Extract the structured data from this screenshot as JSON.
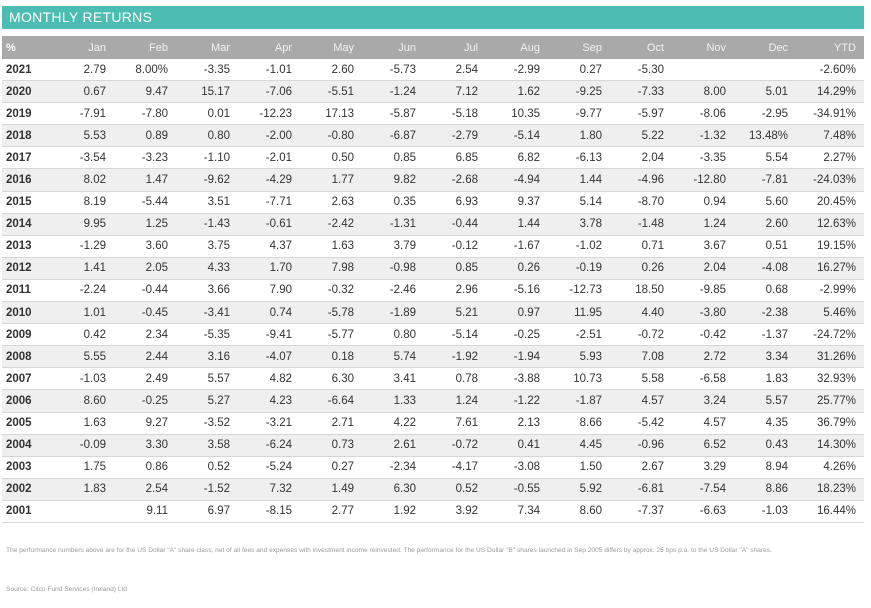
{
  "title": "MONTHLY RETURNS",
  "headers": [
    "%",
    "Jan",
    "Feb",
    "Mar",
    "Apr",
    "May",
    "Jun",
    "Jul",
    "Aug",
    "Sep",
    "Oct",
    "Nov",
    "Dec",
    "YTD"
  ],
  "rows": [
    [
      "2021",
      "2.79",
      "8.00%",
      "-3.35",
      "-1.01",
      "2.60",
      "-5.73",
      "2.54",
      "-2.99",
      "0.27",
      "-5.30",
      "",
      "",
      "-2.60%"
    ],
    [
      "2020",
      "0.67",
      "9.47",
      "15.17",
      "-7.06",
      "-5.51",
      "-1.24",
      "7.12",
      "1.62",
      "-9.25",
      "-7.33",
      "8.00",
      "5.01",
      "14.29%"
    ],
    [
      "2019",
      "-7.91",
      "-7.80",
      "0.01",
      "-12.23",
      "17.13",
      "-5.87",
      "-5.18",
      "10.35",
      "-9.77",
      "-5.97",
      "-8.06",
      "-2.95",
      "-34.91%"
    ],
    [
      "2018",
      "5.53",
      "0.89",
      "0.80",
      "-2.00",
      "-0.80",
      "-6.87",
      "-2.79",
      "-5.14",
      "1.80",
      "5.22",
      "-1.32",
      "13.48%",
      "7.48%"
    ],
    [
      "2017",
      "-3.54",
      "-3.23",
      "-1.10",
      "-2.01",
      "0.50",
      "0.85",
      "6.85",
      "6.82",
      "-6.13",
      "2.04",
      "-3.35",
      "5.54",
      "2.27%"
    ],
    [
      "2016",
      "8.02",
      "1.47",
      "-9.62",
      "-4.29",
      "1.77",
      "9.82",
      "-2.68",
      "-4.94",
      "1.44",
      "-4.96",
      "-12.80",
      "-7.81",
      "-24.03%"
    ],
    [
      "2015",
      "8.19",
      "-5.44",
      "3.51",
      "-7.71",
      "2.63",
      "0.35",
      "6.93",
      "9.37",
      "5.14",
      "-8.70",
      "0.94",
      "5.60",
      "20.45%"
    ],
    [
      "2014",
      "9.95",
      "1.25",
      "-1.43",
      "-0.61",
      "-2.42",
      "-1.31",
      "-0.44",
      "1.44",
      "3.78",
      "-1.48",
      "1.24",
      "2.60",
      "12.63%"
    ],
    [
      "2013",
      "-1.29",
      "3.60",
      "3.75",
      "4.37",
      "1.63",
      "3.79",
      "-0.12",
      "-1.67",
      "-1.02",
      "0.71",
      "3.67",
      "0.51",
      "19.15%"
    ],
    [
      "2012",
      "1.41",
      "2.05",
      "4.33",
      "1.70",
      "7.98",
      "-0.98",
      "0.85",
      "0.26",
      "-0.19",
      "0.26",
      "2.04",
      "-4.08",
      "16.27%"
    ],
    [
      "2011",
      "-2.24",
      "-0.44",
      "3.66",
      "7.90",
      "-0.32",
      "-2.46",
      "2.96",
      "-5.16",
      "-12.73",
      "18.50",
      "-9.85",
      "0.68",
      "-2.99%"
    ],
    [
      "2010",
      "1.01",
      "-0.45",
      "-3.41",
      "0.74",
      "-5.78",
      "-1.89",
      "5.21",
      "0.97",
      "11.95",
      "4.40",
      "-3.80",
      "-2.38",
      "5.46%"
    ],
    [
      "2009",
      "0.42",
      "2.34",
      "-5.35",
      "-9.41",
      "-5.77",
      "0.80",
      "-5.14",
      "-0.25",
      "-2.51",
      "-0.72",
      "-0.42",
      "-1.37",
      "-24.72%"
    ],
    [
      "2008",
      "5.55",
      "2.44",
      "3.16",
      "-4.07",
      "0.18",
      "5.74",
      "-1.92",
      "-1.94",
      "5.93",
      "7.08",
      "2.72",
      "3.34",
      "31.26%"
    ],
    [
      "2007",
      "-1.03",
      "2.49",
      "5.57",
      "4.82",
      "6.30",
      "3.41",
      "0.78",
      "-3.88",
      "10.73",
      "5.58",
      "-6.58",
      "1.83",
      "32.93%"
    ],
    [
      "2006",
      "8.60",
      "-0.25",
      "5.27",
      "4.23",
      "-6.64",
      "1.33",
      "1.24",
      "-1.22",
      "-1.87",
      "4.57",
      "3.24",
      "5.57",
      "25.77%"
    ],
    [
      "2005",
      "1.63",
      "9.27",
      "-3.52",
      "-3.21",
      "2.71",
      "4.22",
      "7.61",
      "2.13",
      "8.66",
      "-5.42",
      "4.57",
      "4.35",
      "36.79%"
    ],
    [
      "2004",
      "-0.09",
      "3.30",
      "3.58",
      "-6.24",
      "0.73",
      "2.61",
      "-0.72",
      "0.41",
      "4.45",
      "-0.96",
      "6.52",
      "0.43",
      "14.30%"
    ],
    [
      "2003",
      "1.75",
      "0.86",
      "0.52",
      "-5.24",
      "0.27",
      "-2.34",
      "-4.17",
      "-3.08",
      "1.50",
      "2.67",
      "3.29",
      "8.94",
      "4.26%"
    ],
    [
      "2002",
      "1.83",
      "2.54",
      "-1.52",
      "7.32",
      "1.49",
      "6.30",
      "0.52",
      "-0.55",
      "5.92",
      "-6.81",
      "-7.54",
      "8.86",
      "18.23%"
    ],
    [
      "2001",
      "",
      "9.11",
      "6.97",
      "-8.15",
      "2.77",
      "1.92",
      "3.92",
      "7.34",
      "8.60",
      "-7.37",
      "-6.63",
      "-1.03",
      "16.44%"
    ]
  ],
  "footnote": "The performance numbers above are for the US Dollar \"A\" share class, net of all fees and expenses with investment income reinvested. The performance for the US Dollar \"B\" shares launched in Sep 2005 differs by approx. 25 bps p.a. to the US Dollar \"A\" shares.",
  "source": "Source: Citco Fund Services (Ireland) Ltd",
  "colors": {
    "title_bar": "#4cbdb3",
    "header_row": "#a9a9a9",
    "alt_row": "#efefef"
  }
}
